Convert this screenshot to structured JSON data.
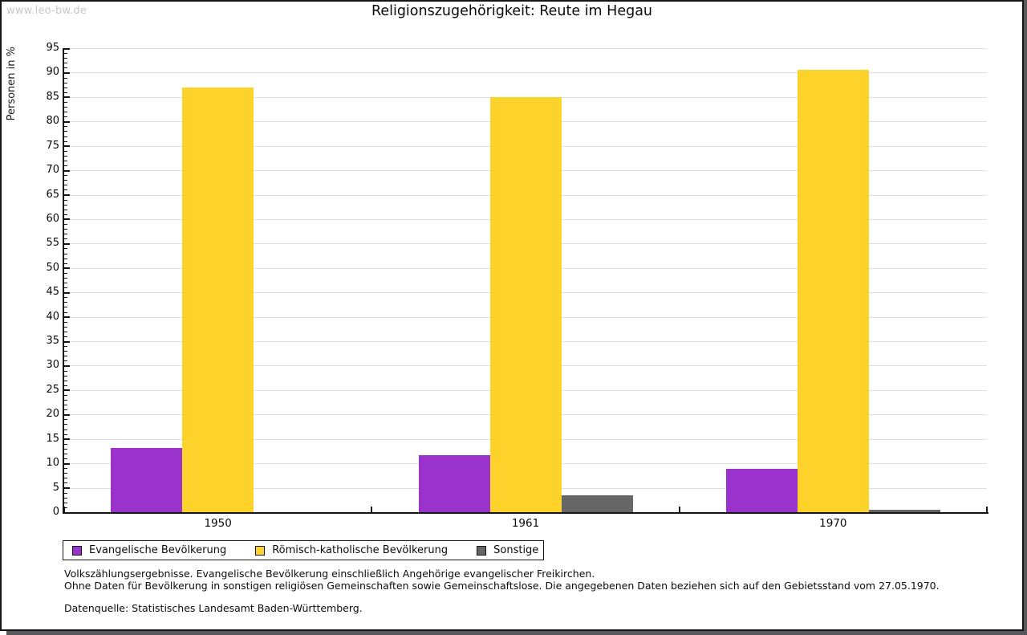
{
  "watermark": "www.leo-bw.de",
  "header": {
    "title": "Religionszugehörigkeit: Reute im Hegau"
  },
  "chart_data": {
    "type": "bar",
    "title": "Religionszugehörigkeit: Reute im Hegau",
    "xlabel": "",
    "ylabel": "Personen in %",
    "ylim": [
      0,
      95
    ],
    "ytick_step": 5,
    "ytick_labels": [
      "0",
      "5",
      "10",
      "15",
      "20",
      "25",
      "30",
      "35",
      "40",
      "45",
      "50",
      "55",
      "60",
      "65",
      "70",
      "75",
      "80",
      "85",
      "90",
      "95"
    ],
    "grid": true,
    "legend_position": "bottom-left",
    "categories": [
      "1950",
      "1961",
      "1970"
    ],
    "series": [
      {
        "name": "Evangelische Bevölkerung",
        "color": "#9933cc",
        "values": [
          13.1,
          11.6,
          8.9
        ]
      },
      {
        "name": "Römisch-katholische Bevölkerung",
        "color": "#fdd32b",
        "values": [
          86.9,
          85.0,
          90.6
        ]
      },
      {
        "name": "Sonstige",
        "color": "#666666",
        "values": [
          0.0,
          3.4,
          0.5
        ]
      }
    ]
  },
  "footnotes": {
    "line1": "Volkszählungsergebnisse. Evangelische Bevölkerung einschließlich Angehörige evangelischer Freikirchen.",
    "line2": "Ohne Daten für Bevölkerung in sonstigen religiösen Gemeinschaften sowie Gemeinschaftslose. Die angegebenen Daten beziehen sich auf den Gebietsstand vom 27.05.1970.",
    "source": "Datenquelle: Statistisches Landesamt Baden-Württemberg."
  },
  "colors": {
    "frame_border": "#141414",
    "shadow": "#58585a",
    "gridline": "#dedede",
    "watermark": "#c7c7c7"
  }
}
